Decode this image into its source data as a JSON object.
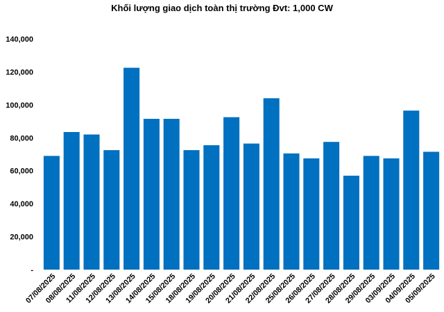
{
  "chart_data": {
    "type": "bar",
    "title": "Khối lượng giao dịch toàn thị trường Đvt: 1,000 CW",
    "xlabel": "",
    "ylabel": "",
    "categories": [
      "07/08/2025",
      "08/08/2025",
      "11/08/2025",
      "12/08/2025",
      "13/08/2025",
      "14/08/2025",
      "15/08/2025",
      "18/08/2025",
      "19/08/2025",
      "20/08/2025",
      "21/08/2025",
      "22/08/2025",
      "25/08/2025",
      "26/08/2025",
      "27/08/2025",
      "28/08/2025",
      "29/08/2025",
      "03/09/2025",
      "04/09/2025",
      "05/09/2025"
    ],
    "values": [
      69000,
      83500,
      82000,
      72500,
      122500,
      91500,
      91500,
      72500,
      75500,
      92500,
      76500,
      104000,
      70500,
      67500,
      77500,
      57000,
      69000,
      67500,
      96500,
      71500
    ],
    "ylim": [
      0,
      140000
    ],
    "yticks": [
      0,
      20000,
      40000,
      60000,
      80000,
      100000,
      120000,
      140000
    ],
    "ytick_labels": [
      "-",
      "20,000",
      "40,000",
      "60,000",
      "80,000",
      "100,000",
      "120,000",
      "140,000"
    ],
    "bar_color": "#0070C0",
    "grid": false,
    "legend": "none"
  }
}
